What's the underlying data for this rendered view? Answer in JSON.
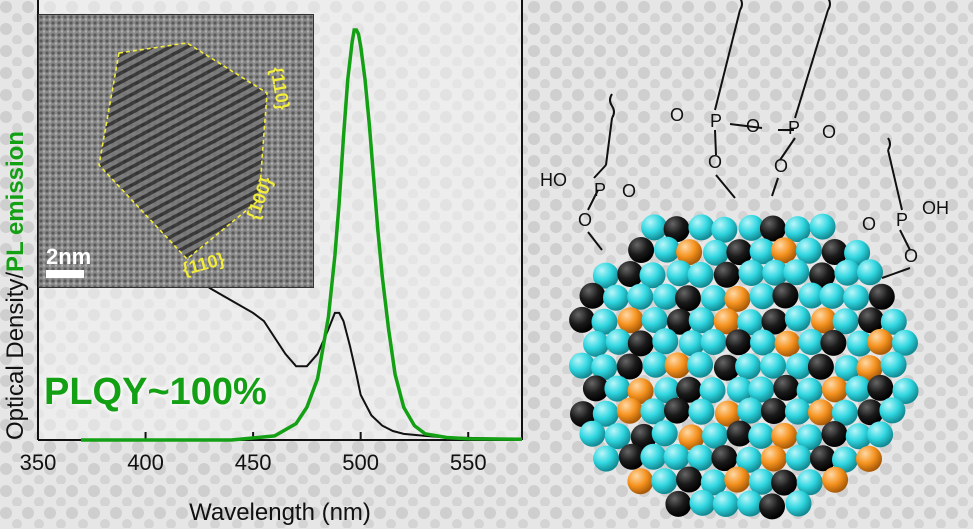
{
  "chart_data": {
    "type": "line",
    "xlabel": "Wavelength (nm)",
    "ylabel_part1": "Optical Density/",
    "ylabel_part2": "PL emission",
    "xlim": [
      350,
      575
    ],
    "xticks": [
      350,
      400,
      450,
      500,
      550
    ],
    "series": [
      {
        "role": "absorbance",
        "color": "#111111",
        "x": [
          370,
          380,
          390,
          400,
          410,
          420,
          430,
          440,
          450,
          455,
          460,
          465,
          470,
          475,
          480,
          485,
          488,
          490,
          492,
          495,
          498,
          500,
          505,
          510,
          515,
          520,
          530,
          540,
          550,
          560,
          575
        ],
        "y": [
          0.8,
          0.72,
          0.63,
          0.55,
          0.47,
          0.41,
          0.37,
          0.34,
          0.31,
          0.29,
          0.25,
          0.21,
          0.18,
          0.18,
          0.21,
          0.27,
          0.31,
          0.31,
          0.29,
          0.23,
          0.16,
          0.11,
          0.06,
          0.035,
          0.022,
          0.015,
          0.01,
          0.006,
          0.005,
          0.004,
          0.003
        ]
      },
      {
        "role": "emission",
        "color": "#14a014",
        "x": [
          370,
          440,
          460,
          470,
          475,
          480,
          485,
          488,
          490,
          492,
          494,
          496,
          497,
          498,
          499,
          500,
          502,
          504,
          506,
          508,
          510,
          513,
          516,
          520,
          525,
          530,
          540,
          550,
          575
        ],
        "y": [
          0.0,
          0.0,
          0.01,
          0.04,
          0.08,
          0.15,
          0.3,
          0.45,
          0.58,
          0.74,
          0.88,
          0.97,
          1.0,
          1.0,
          0.99,
          0.96,
          0.88,
          0.77,
          0.64,
          0.51,
          0.4,
          0.27,
          0.16,
          0.08,
          0.035,
          0.015,
          0.006,
          0.003,
          0.002
        ]
      }
    ]
  },
  "annotations": {
    "plqy": "PLQY~100%"
  },
  "inset": {
    "scale_bar": "2nm",
    "facets": [
      "{110}",
      "{100}",
      "{110}"
    ],
    "outline_color": "#f2ec3c"
  },
  "molecule": {
    "colors": {
      "cs": "#f5921e",
      "pb": "#1a1a1a",
      "halide": "#2fd6e0"
    },
    "labels": {
      "left_ho": "HO",
      "left_p": "P",
      "left_o_double": "O",
      "left_o_link": "O",
      "center_o1": "O",
      "center_p1": "P",
      "center_o2": "O",
      "center_p2": "P",
      "center_o3": "O",
      "center_o_link1": "O",
      "center_o_link2": "O",
      "right_o_double": "O",
      "right_p": "P",
      "right_oh": "OH",
      "right_o_link": "O"
    }
  }
}
